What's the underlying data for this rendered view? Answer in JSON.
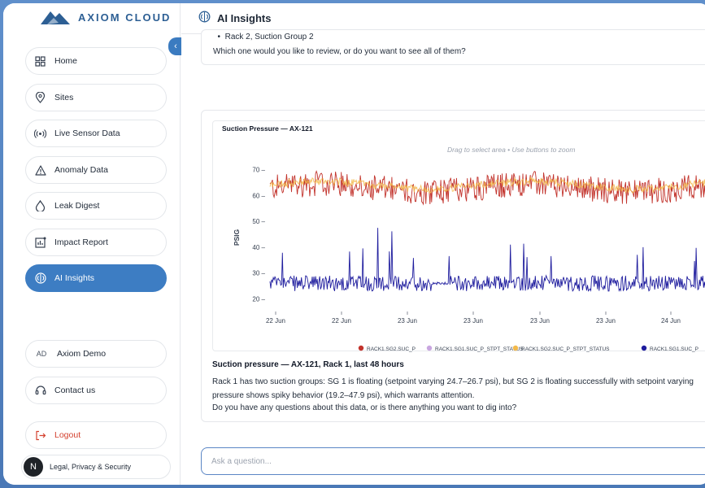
{
  "app": {
    "brand": "AXIOM CLOUD",
    "collapse_icon": "chevron-left-icon",
    "colors": {
      "brand": "#2d5f94",
      "accent": "#3d7dc3",
      "logout": "#d4412f"
    }
  },
  "sidebar": {
    "items": [
      {
        "label": "Home",
        "icon": "grid-icon"
      },
      {
        "label": "Sites",
        "icon": "location-pin-icon"
      },
      {
        "label": "Live Sensor Data",
        "icon": "broadcast-icon"
      },
      {
        "label": "Anomaly Data",
        "icon": "warning-triangle-icon"
      },
      {
        "label": "Leak Digest",
        "icon": "droplet-icon"
      },
      {
        "label": "Impact Report",
        "icon": "bar-report-icon"
      },
      {
        "label": "AI Insights",
        "icon": "brain-icon",
        "active": true
      }
    ],
    "user": {
      "initials": "AD",
      "name": "Axiom Demo"
    },
    "contact": {
      "label": "Contact us",
      "icon": "headset-icon"
    },
    "logout": {
      "label": "Logout",
      "icon": "logout-arrow-icon"
    },
    "legal": {
      "avatar": "N",
      "label": "Legal, Privacy & Security"
    }
  },
  "header": {
    "title": "AI Insights",
    "icon": "brain-icon"
  },
  "conversation": {
    "prev_message": {
      "bullet": "Rack 2, Suction Group 2",
      "question": "Which one would you like to review, or do you want to see all of them?"
    },
    "chart_card": {
      "hint": "Drag to select area • Use buttons to zoom"
    },
    "response": {
      "title": "Suction pressure — AX-121, Rack 1, last 48 hours",
      "body_line1": "Rack 1 has two suction groups: SG 1 is floating (setpoint varying 24.7–26.7 psi), but SG 2 is floating successfully with setpoint varying",
      "body_line2": "pressure shows spiky behavior (19.2–47.9 psi), which warrants attention.",
      "question": "Do you have any questions about this data, or is there anything you want to dig into?"
    }
  },
  "ask": {
    "placeholder": "Ask a question..."
  },
  "chart_data": {
    "type": "line",
    "title": "Suction Pressure — AX-121",
    "ylabel": "PSIG",
    "xlabel": "",
    "ylim": [
      17,
      73
    ],
    "yticks": [
      20,
      30,
      40,
      50,
      60,
      70
    ],
    "xtick_labels": [
      "22 Jun",
      "22 Jun",
      "23 Jun",
      "23 Jun",
      "23 Jun",
      "23 Jun",
      "24 Jun"
    ],
    "legend_position": "bottom",
    "grid": false,
    "series": [
      {
        "name": "RACK1.SG2.SUC_P",
        "color": "#c2332c",
        "approx_mean": 63,
        "approx_range": [
          55,
          71
        ]
      },
      {
        "name": "RACK1.SG1.SUC_P_STPT_STATUS",
        "color": "#c9a6e0"
      },
      {
        "name": "RACK1.SG2.SUC_P_STPT_STATUS",
        "color": "#f3b94a",
        "approx_mean": 64
      },
      {
        "name": "RACK1.SG1.SUC_P",
        "color": "#1f1d9e",
        "approx_mean": 27,
        "approx_range": [
          19.2,
          47.9
        ]
      }
    ]
  }
}
